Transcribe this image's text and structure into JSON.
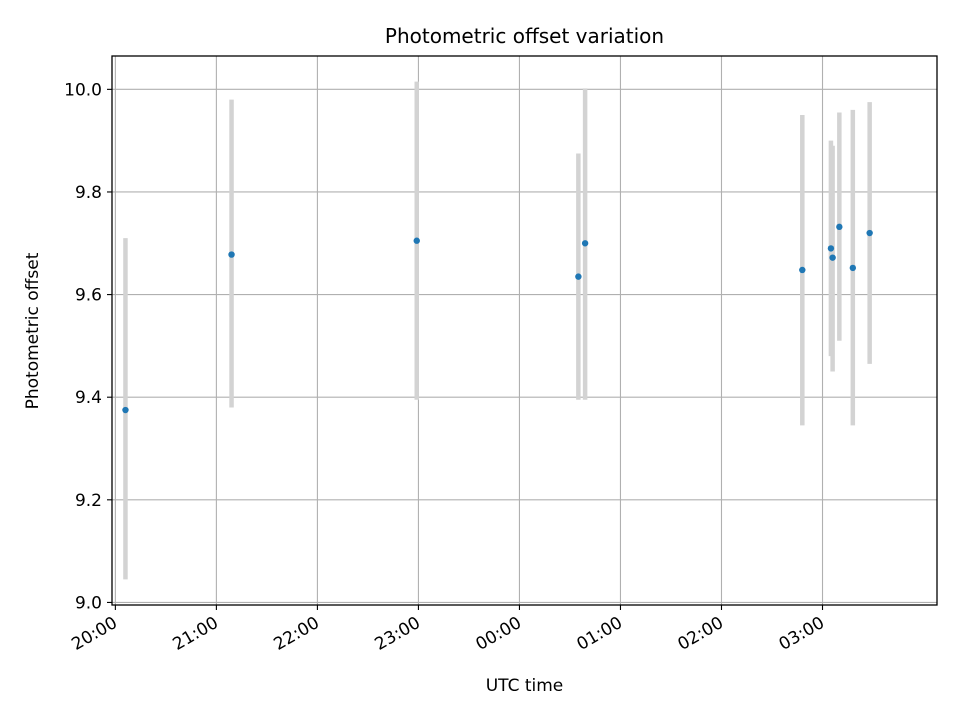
{
  "chart_data": {
    "type": "scatter",
    "title": "Photometric offset variation",
    "xlabel": "UTC time",
    "ylabel": "Photometric offset",
    "x_unit": "UTC time (HH:MM)",
    "xlim": [
      "19:58",
      "04:08"
    ],
    "ylim": [
      8.995,
      10.065
    ],
    "x_tick_labels": [
      "20:00",
      "21:00",
      "22:00",
      "23:00",
      "00:00",
      "01:00",
      "02:00",
      "03:00"
    ],
    "y_ticks": [
      9.0,
      9.2,
      9.4,
      9.6,
      9.8,
      10.0
    ],
    "y_tick_labels": [
      "9.0",
      "9.2",
      "9.4",
      "9.6",
      "9.8",
      "10.0"
    ],
    "grid": true,
    "legend": "none",
    "error_bars": "vertical",
    "colors": {
      "point": "#1f77b4",
      "errorbar": "#d3d3d3",
      "grid": "#b0b0b0"
    },
    "points": [
      {
        "x": "20:06",
        "y": 9.375,
        "y_low": 9.045,
        "y_high": 9.71
      },
      {
        "x": "21:09",
        "y": 9.678,
        "y_low": 9.38,
        "y_high": 9.98
      },
      {
        "x": "22:59",
        "y": 9.705,
        "y_low": 9.395,
        "y_high": 10.015
      },
      {
        "x": "00:35",
        "y": 9.635,
        "y_low": 9.395,
        "y_high": 9.875
      },
      {
        "x": "00:39",
        "y": 9.7,
        "y_low": 9.395,
        "y_high": 10.002
      },
      {
        "x": "02:48",
        "y": 9.648,
        "y_low": 9.345,
        "y_high": 9.95
      },
      {
        "x": "03:05",
        "y": 9.69,
        "y_low": 9.48,
        "y_high": 9.9
      },
      {
        "x": "03:06",
        "y": 9.672,
        "y_low": 9.45,
        "y_high": 9.89
      },
      {
        "x": "03:10",
        "y": 9.732,
        "y_low": 9.51,
        "y_high": 9.955
      },
      {
        "x": "03:18",
        "y": 9.652,
        "y_low": 9.345,
        "y_high": 9.96
      },
      {
        "x": "03:28",
        "y": 9.72,
        "y_low": 9.465,
        "y_high": 9.975
      }
    ]
  }
}
